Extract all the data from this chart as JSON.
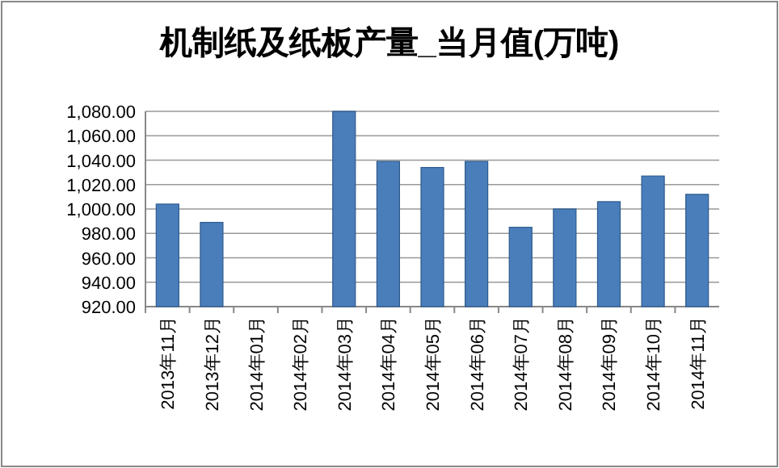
{
  "chart_data": {
    "type": "bar",
    "title": "机制纸及纸板产量_当月值(万吨)",
    "categories": [
      "2013年11月",
      "2013年12月",
      "2014年01月",
      "2014年02月",
      "2014年03月",
      "2014年04月",
      "2014年05月",
      "2014年06月",
      "2014年07月",
      "2014年08月",
      "2014年09月",
      "2014年10月",
      "2014年11月"
    ],
    "values": [
      1004,
      989,
      null,
      null,
      1080,
      1039,
      1034,
      1039,
      985,
      1000,
      1006,
      1027,
      1012
    ],
    "color": "#4a7ebb",
    "ylim": [
      920,
      1080
    ],
    "yticks": [
      {
        "value": 920,
        "label": "920.00"
      },
      {
        "value": 940,
        "label": "940.00"
      },
      {
        "value": 960,
        "label": "960.00"
      },
      {
        "value": 980,
        "label": "980.00"
      },
      {
        "value": 1000,
        "label": "1,000.00"
      },
      {
        "value": 1020,
        "label": "1,020.00"
      },
      {
        "value": 1040,
        "label": "1,040.00"
      },
      {
        "value": 1060,
        "label": "1,060.00"
      },
      {
        "value": 1080,
        "label": "1,080.00"
      }
    ],
    "grid": "y"
  }
}
